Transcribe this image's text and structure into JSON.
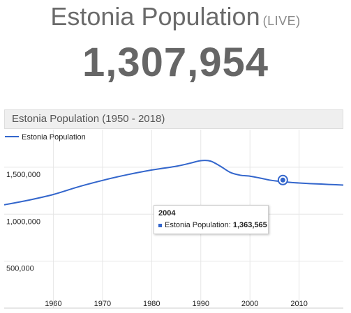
{
  "header": {
    "title": "Estonia Population",
    "live_label": "(LIVE)",
    "counter": "1,307,954"
  },
  "panel": {
    "title": "Estonia Population (1950 - 2018)"
  },
  "colors": {
    "series": "#3366cc",
    "grid": "#e6e6e6"
  },
  "chart_data": {
    "type": "line",
    "title": "",
    "xlabel": "",
    "ylabel": "",
    "legend": "top-left",
    "grid": true,
    "xlim": [
      1950,
      2019
    ],
    "ylim": [
      0,
      1900000
    ],
    "x_ticks": [
      "1960",
      "1970",
      "1980",
      "1990",
      "2000",
      "2010"
    ],
    "y_ticks": [
      "500,000",
      "1,000,000",
      "1,500,000"
    ],
    "series": [
      {
        "name": "Estonia Population",
        "x": [
          1950,
          1955,
          1960,
          1965,
          1970,
          1975,
          1980,
          1985,
          1988,
          1990,
          1992,
          1994,
          1996,
          1998,
          2000,
          2002,
          2004,
          2006,
          2008,
          2010,
          2013,
          2016,
          2019
        ],
        "y": [
          1100000,
          1150000,
          1210000,
          1290000,
          1360000,
          1420000,
          1470000,
          1510000,
          1545000,
          1570000,
          1565000,
          1510000,
          1445000,
          1415000,
          1405000,
          1385000,
          1363565,
          1350000,
          1340000,
          1332000,
          1324000,
          1317000,
          1310000
        ]
      }
    ]
  },
  "tooltip": {
    "year": "2004",
    "label": "Estonia Population:",
    "value": "1,363,565"
  }
}
